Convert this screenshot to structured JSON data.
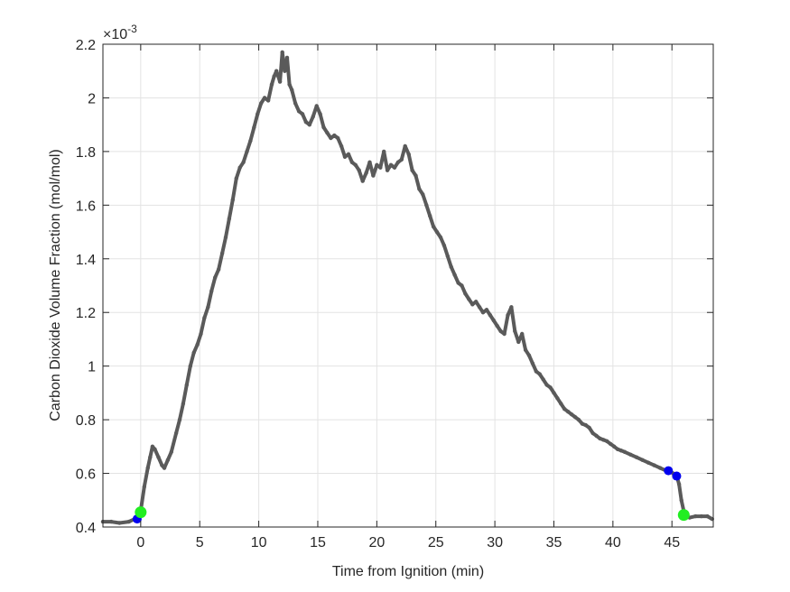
{
  "chart_data": {
    "type": "line",
    "title": "",
    "xlabel": "Time from Ignition (min)",
    "ylabel": "Carbon Dioxide Volume Fraction (mol/mol)",
    "y_exponent_label": "×10",
    "y_exponent": "-3",
    "xlim": [
      -3.2,
      48.5
    ],
    "ylim": [
      0.4,
      2.2
    ],
    "grid": true,
    "x_ticks": [
      "0",
      "5",
      "10",
      "15",
      "20",
      "25",
      "30",
      "35",
      "40",
      "45"
    ],
    "y_ticks": [
      "0.4",
      "0.6",
      "0.8",
      "1",
      "1.2",
      "1.4",
      "1.6",
      "1.8",
      "2",
      "2.2"
    ],
    "series": [
      {
        "color": "#5a5a5a",
        "x": [
          -3.2,
          -2.5,
          -1.8,
          -1.0,
          -0.5,
          -0.2,
          0.0,
          0.3,
          0.6,
          0.8,
          1.0,
          1.2,
          1.5,
          1.8,
          2.0,
          2.3,
          2.6,
          3.0,
          3.3,
          3.6,
          3.9,
          4.2,
          4.5,
          4.8,
          5.1,
          5.4,
          5.7,
          6.0,
          6.3,
          6.6,
          6.9,
          7.2,
          7.5,
          7.8,
          8.1,
          8.4,
          8.7,
          9.0,
          9.3,
          9.6,
          9.9,
          10.2,
          10.5,
          10.8,
          11.1,
          11.3,
          11.5,
          11.8,
          12.0,
          12.2,
          12.4,
          12.6,
          12.8,
          13.1,
          13.4,
          13.7,
          14.0,
          14.3,
          14.6,
          14.9,
          15.2,
          15.5,
          15.8,
          16.1,
          16.4,
          16.7,
          17.0,
          17.3,
          17.6,
          17.9,
          18.2,
          18.5,
          18.8,
          19.1,
          19.4,
          19.7,
          20.0,
          20.3,
          20.6,
          20.9,
          21.2,
          21.5,
          21.8,
          22.1,
          22.4,
          22.7,
          23.0,
          23.3,
          23.6,
          23.9,
          24.2,
          24.5,
          24.8,
          25.1,
          25.4,
          25.7,
          26.0,
          26.3,
          26.6,
          26.9,
          27.2,
          27.5,
          27.8,
          28.1,
          28.4,
          28.7,
          29.0,
          29.3,
          29.6,
          29.9,
          30.2,
          30.5,
          30.8,
          31.1,
          31.4,
          31.7,
          32.0,
          32.3,
          32.6,
          32.9,
          33.2,
          33.5,
          33.8,
          34.1,
          34.4,
          34.7,
          35.0,
          35.3,
          35.6,
          35.9,
          36.2,
          36.5,
          36.8,
          37.1,
          37.4,
          37.7,
          38.0,
          38.3,
          38.6,
          38.9,
          39.2,
          39.5,
          39.8,
          40.1,
          40.4,
          40.7,
          41.0,
          41.5,
          42.0,
          42.5,
          43.0,
          43.5,
          44.0,
          44.5,
          44.8,
          45.1,
          45.4,
          45.6,
          45.8,
          46.0,
          46.2,
          46.5,
          47.0,
          47.5,
          48.0,
          48.4
        ],
        "y": [
          0.42,
          0.42,
          0.415,
          0.42,
          0.43,
          0.44,
          0.46,
          0.55,
          0.62,
          0.66,
          0.7,
          0.69,
          0.66,
          0.63,
          0.62,
          0.65,
          0.68,
          0.75,
          0.8,
          0.86,
          0.93,
          1.0,
          1.05,
          1.08,
          1.12,
          1.18,
          1.22,
          1.28,
          1.33,
          1.36,
          1.42,
          1.48,
          1.55,
          1.62,
          1.7,
          1.74,
          1.76,
          1.8,
          1.84,
          1.89,
          1.94,
          1.98,
          2.0,
          1.99,
          2.05,
          2.08,
          2.1,
          2.06,
          2.17,
          2.1,
          2.15,
          2.05,
          2.03,
          1.98,
          1.95,
          1.94,
          1.91,
          1.9,
          1.93,
          1.97,
          1.94,
          1.89,
          1.87,
          1.85,
          1.86,
          1.85,
          1.82,
          1.78,
          1.79,
          1.76,
          1.75,
          1.73,
          1.69,
          1.72,
          1.76,
          1.71,
          1.75,
          1.74,
          1.8,
          1.73,
          1.75,
          1.74,
          1.76,
          1.77,
          1.82,
          1.79,
          1.73,
          1.71,
          1.66,
          1.64,
          1.6,
          1.56,
          1.52,
          1.5,
          1.48,
          1.45,
          1.41,
          1.37,
          1.34,
          1.31,
          1.3,
          1.27,
          1.25,
          1.23,
          1.24,
          1.22,
          1.2,
          1.21,
          1.19,
          1.17,
          1.15,
          1.13,
          1.12,
          1.19,
          1.22,
          1.13,
          1.09,
          1.12,
          1.06,
          1.04,
          1.01,
          0.98,
          0.97,
          0.95,
          0.93,
          0.92,
          0.9,
          0.88,
          0.86,
          0.84,
          0.83,
          0.82,
          0.81,
          0.8,
          0.785,
          0.78,
          0.77,
          0.75,
          0.74,
          0.73,
          0.725,
          0.72,
          0.71,
          0.7,
          0.69,
          0.685,
          0.68,
          0.67,
          0.66,
          0.65,
          0.64,
          0.63,
          0.62,
          0.61,
          0.61,
          0.6,
          0.59,
          0.56,
          0.5,
          0.46,
          0.44,
          0.435,
          0.44,
          0.44,
          0.44,
          0.43
        ]
      }
    ],
    "markers": [
      {
        "x": -0.3,
        "y": 0.43,
        "color": "#0000ee",
        "r": 5
      },
      {
        "x": 0.0,
        "y": 0.455,
        "color": "#22ee22",
        "r": 6.5
      },
      {
        "x": 44.7,
        "y": 0.61,
        "color": "#0000ee",
        "r": 5
      },
      {
        "x": 45.4,
        "y": 0.59,
        "color": "#0000ee",
        "r": 5
      },
      {
        "x": 46.0,
        "y": 0.445,
        "color": "#22ee22",
        "r": 6.5
      }
    ]
  }
}
